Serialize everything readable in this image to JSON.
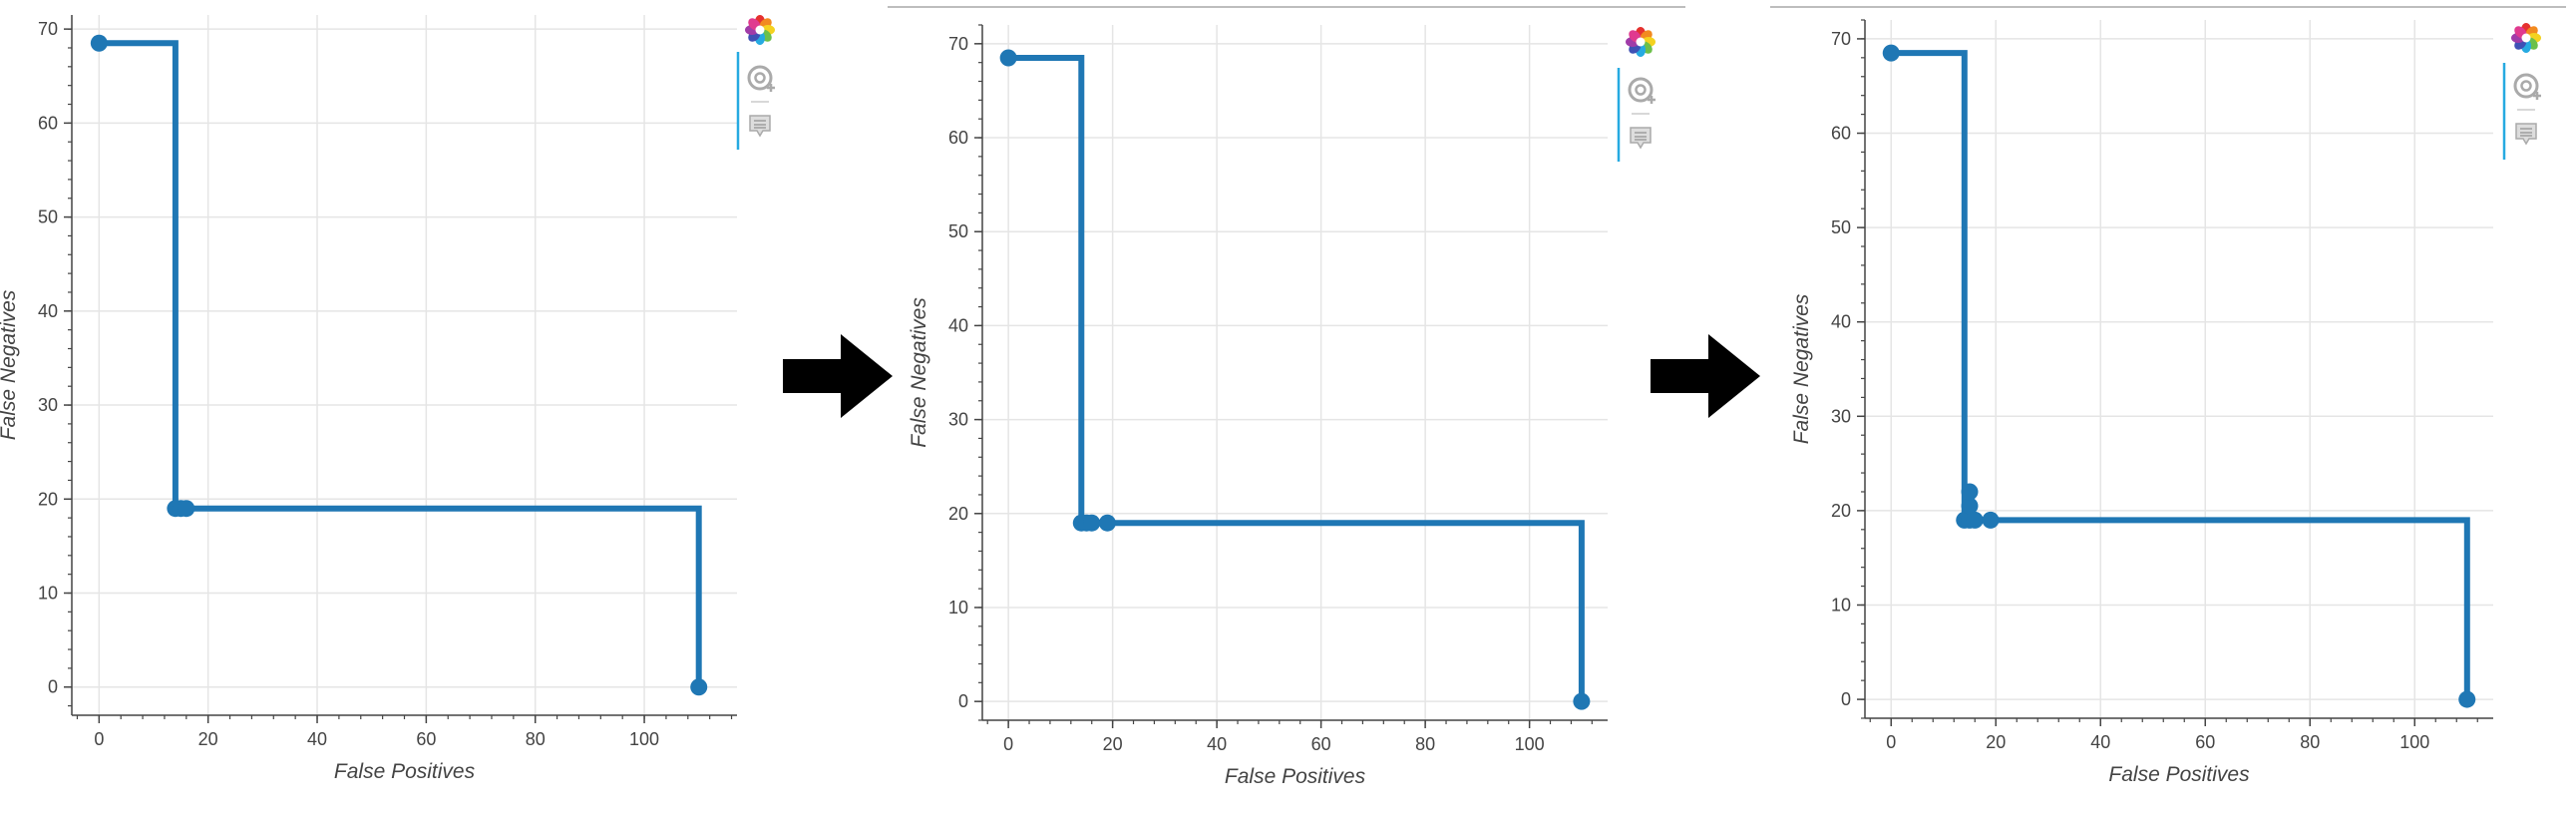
{
  "colors": {
    "line": "#1f77b4",
    "grid": "#e5e5e5",
    "axis": "#444444",
    "toolbar_accent": "#26aae1",
    "arrow": "#000000"
  },
  "toolbar": {
    "icons": [
      "bokeh-logo-icon",
      "wheel-zoom-icon",
      "hover-tooltip-icon"
    ]
  },
  "arrows": [
    "right-arrow-icon",
    "right-arrow-icon"
  ],
  "chart_data": [
    {
      "type": "line",
      "step": true,
      "xlabel": "False Positives",
      "ylabel": "False Negatives",
      "xlim": [
        -5,
        117
      ],
      "ylim": [
        -3,
        71.5
      ],
      "xticks": [
        "0",
        "20",
        "40",
        "60",
        "80",
        "100"
      ],
      "yticks": [
        "0",
        "10",
        "20",
        "30",
        "40",
        "50",
        "60",
        "70"
      ],
      "grid": true,
      "series": [
        {
          "x": [
            0,
            14,
            14,
            110,
            110
          ],
          "y": [
            68.5,
            68.5,
            19,
            19,
            0
          ],
          "points": {
            "x": [
              0,
              14,
              15,
              16,
              110
            ],
            "y": [
              68.5,
              19,
              19,
              19,
              0
            ]
          }
        }
      ]
    },
    {
      "type": "line",
      "step": true,
      "xlabel": "False Positives",
      "ylabel": "False Negatives",
      "xlim": [
        -5,
        115
      ],
      "ylim": [
        -2,
        72
      ],
      "xticks": [
        "0",
        "20",
        "40",
        "60",
        "80",
        "100"
      ],
      "yticks": [
        "0",
        "10",
        "20",
        "30",
        "40",
        "50",
        "60",
        "70"
      ],
      "grid": true,
      "series": [
        {
          "x": [
            0,
            14,
            14,
            110,
            110
          ],
          "y": [
            68.5,
            68.5,
            19,
            19,
            0
          ],
          "points": {
            "x": [
              0,
              14,
              15,
              16,
              19,
              110
            ],
            "y": [
              68.5,
              19,
              19,
              19,
              19,
              0
            ]
          }
        }
      ]
    },
    {
      "type": "line",
      "step": true,
      "xlabel": "False Positives",
      "ylabel": "False Negatives",
      "xlim": [
        -5,
        115
      ],
      "ylim": [
        -2,
        72
      ],
      "xticks": [
        "0",
        "20",
        "40",
        "60",
        "80",
        "100"
      ],
      "yticks": [
        "0",
        "10",
        "20",
        "30",
        "40",
        "50",
        "60",
        "70"
      ],
      "grid": true,
      "series": [
        {
          "x": [
            0,
            14,
            14,
            110,
            110
          ],
          "y": [
            68.5,
            68.5,
            19,
            19,
            0
          ],
          "points": {
            "x": [
              0,
              14,
              15,
              15,
              15,
              16,
              19,
              110
            ],
            "y": [
              68.5,
              19,
              19,
              20.5,
              22,
              19,
              19,
              0
            ]
          }
        }
      ]
    }
  ]
}
